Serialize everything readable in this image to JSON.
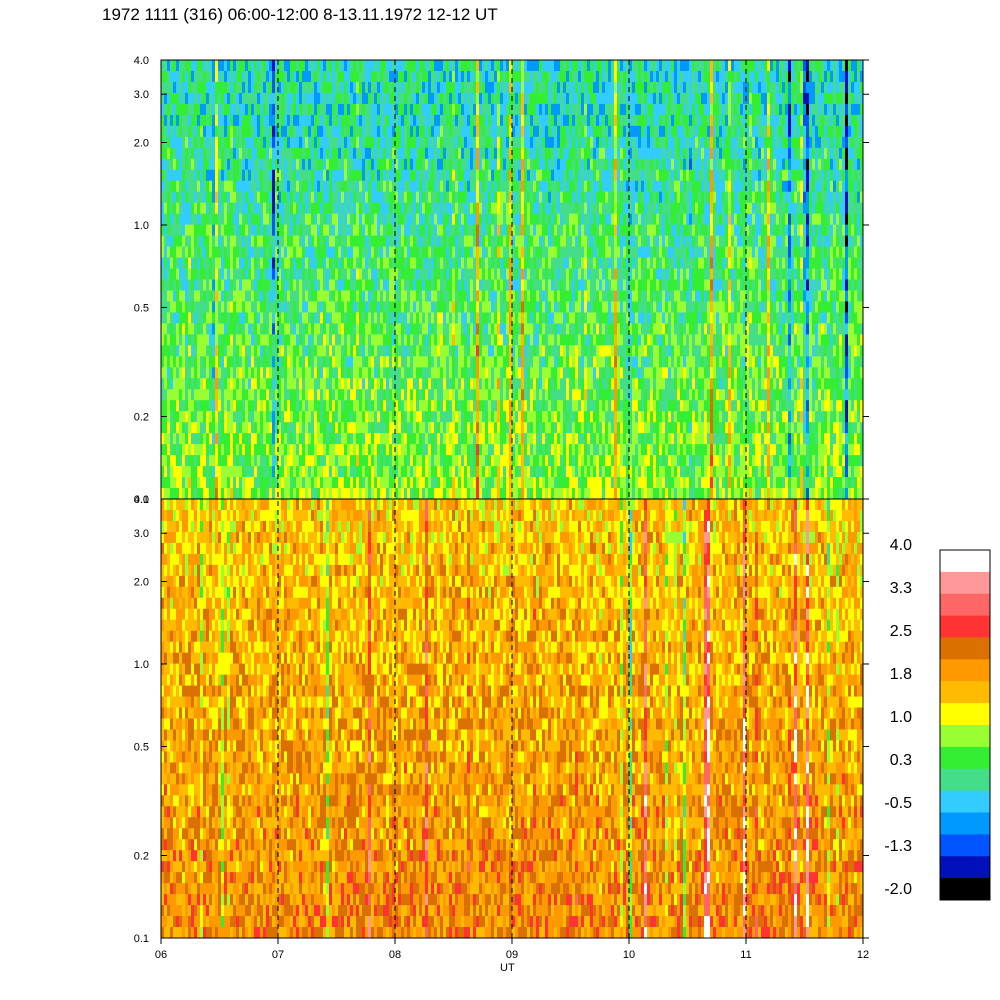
{
  "chart_data": {
    "type": "heatmap",
    "title": "1972 1111 (316) 06:00-12:00 8-13.11.1972  12-12 UT",
    "xlabel": "UT",
    "x_ticks": [
      "06",
      "07",
      "08",
      "09",
      "10",
      "11",
      "12"
    ],
    "x_range": [
      6,
      12
    ],
    "y_scale": "log",
    "y_range": [
      0.1,
      4.0
    ],
    "y_ticks": [
      "0.1",
      "0.2",
      "0.5",
      "1.0",
      "2.0",
      "3.0",
      "4.0"
    ],
    "y_tick_values": [
      0.1,
      0.2,
      0.5,
      1.0,
      2.0,
      3.0,
      4.0
    ],
    "dashed_vlines_at": [
      7,
      8,
      9,
      10,
      11
    ],
    "panels": [
      {
        "id": "upper",
        "dominant_level": 0.3
      },
      {
        "id": "lower",
        "dominant_level": 1.8
      }
    ],
    "colorbar": {
      "range": [
        -2.0,
        4.0
      ],
      "labels": [
        "4.0",
        "3.3",
        "2.5",
        "1.8",
        "1.0",
        "0.3",
        "-0.5",
        "-1.3",
        "-2.0"
      ],
      "colors": [
        "#ffffff",
        "#ff9999",
        "#ff6666",
        "#ff3333",
        "#d97000",
        "#ff9900",
        "#ffbb00",
        "#ffff00",
        "#99ff33",
        "#33ee33",
        "#44dd88",
        "#33ccff",
        "#0099ff",
        "#0055ff",
        "#0011bb",
        "#000000"
      ]
    }
  }
}
